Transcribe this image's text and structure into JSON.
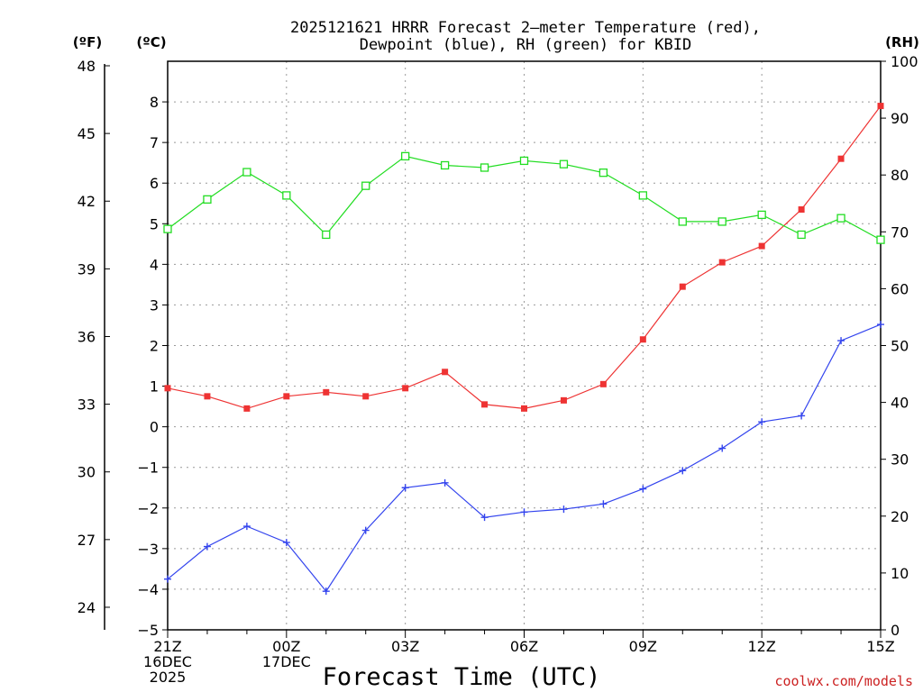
{
  "chart_data": {
    "type": "line",
    "title_line1": "2025121621 HRRR Forecast 2–meter Temperature (red),",
    "title_line2": "Dewpoint (blue), RH (green) for KBID",
    "xlabel": "Forecast Time (UTC)",
    "credit": "coolwx.com/models",
    "unit_f": "(ºF)",
    "unit_c": "(ºC)",
    "unit_rh": "(RH)",
    "x_hours": [
      0,
      1,
      2,
      3,
      4,
      5,
      6,
      7,
      8,
      9,
      10,
      11,
      12,
      13,
      14,
      15,
      16,
      17,
      18
    ],
    "x_ticks": [
      {
        "h": 0,
        "lines": [
          "21Z",
          "16DEC",
          "2025"
        ]
      },
      {
        "h": 3,
        "lines": [
          "00Z",
          "17DEC"
        ]
      },
      {
        "h": 6,
        "lines": [
          "03Z"
        ]
      },
      {
        "h": 9,
        "lines": [
          "06Z"
        ]
      },
      {
        "h": 12,
        "lines": [
          "09Z"
        ]
      },
      {
        "h": 15,
        "lines": [
          "12Z"
        ]
      },
      {
        "h": 18,
        "lines": [
          "15Z"
        ]
      }
    ],
    "celsius_axis": {
      "min": -5,
      "max": 9,
      "ticks": [
        -5,
        -4,
        -3,
        -2,
        -1,
        0,
        1,
        2,
        3,
        4,
        5,
        6,
        7,
        8
      ]
    },
    "fahrenheit_axis": {
      "ticks": [
        24,
        27,
        30,
        33,
        36,
        39,
        42,
        45,
        48
      ]
    },
    "rh_axis": {
      "min": 0,
      "max": 100,
      "ticks": [
        0,
        10,
        20,
        30,
        40,
        50,
        60,
        70,
        80,
        90,
        100
      ]
    },
    "series": [
      {
        "name": "Temperature",
        "unit": "C",
        "color": "#ee3333",
        "marker": "filled-square",
        "values": [
          0.95,
          0.75,
          0.45,
          0.75,
          0.85,
          0.75,
          0.95,
          1.35,
          0.55,
          0.45,
          0.65,
          1.05,
          2.15,
          3.45,
          4.05,
          4.45,
          5.35,
          6.6,
          7.9
        ]
      },
      {
        "name": "Dewpoint",
        "unit": "C",
        "color": "#3344ee",
        "marker": "plus",
        "values": [
          -3.75,
          -2.95,
          -2.45,
          -2.85,
          -4.05,
          -2.55,
          -1.5,
          -1.38,
          -2.23,
          -2.1,
          -2.03,
          -1.9,
          -1.53,
          -1.08,
          -0.53,
          0.12,
          0.27,
          2.12,
          2.52
        ]
      },
      {
        "name": "RH",
        "unit": "%",
        "color": "#22dd22",
        "marker": "open-square",
        "values": [
          70.5,
          75.7,
          80.5,
          76.4,
          69.5,
          78.1,
          83.3,
          81.7,
          81.3,
          82.5,
          81.9,
          80.4,
          76.4,
          71.8,
          71.8,
          73.0,
          69.5,
          72.4,
          68.6
        ]
      }
    ]
  }
}
